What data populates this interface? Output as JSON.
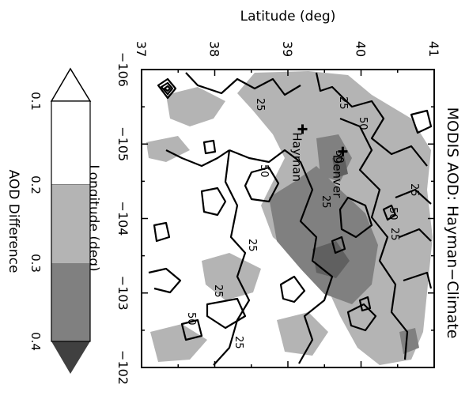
{
  "chart_data": {
    "type": "heatmap",
    "title": "MODIS AOD: Hayman−Climate",
    "xlabel": "Longitude (deg)",
    "ylabel": "Latitude (deg)",
    "xlim": [
      -106,
      -102
    ],
    "ylim": [
      37,
      41
    ],
    "x_ticks": [
      "−106",
      "−105",
      "−104",
      "−103",
      "−102"
    ],
    "y_ticks": [
      "37",
      "38",
      "39",
      "40",
      "41"
    ],
    "colorbar": {
      "label": "AOD Difference",
      "ticks": [
        "0.1",
        "0.2",
        "0.3",
        "0.4"
      ],
      "levels": [
        {
          "from": 0.1,
          "to": 0.2,
          "color": "#ffffff"
        },
        {
          "from": 0.2,
          "to": 0.3,
          "color": "#b4b4b4"
        },
        {
          "from": 0.3,
          "to": 0.4,
          "color": "#808080"
        },
        {
          "from": 0.4,
          "to": null,
          "color": "#404040"
        }
      ]
    },
    "contour_labels": [
      "25",
      "25",
      "50",
      "50",
      "50",
      "25",
      "25",
      "25",
      "50",
      "25",
      "25",
      "25",
      "50"
    ],
    "locations": [
      {
        "name": "Hayman",
        "lon": -105.2,
        "lat": 39.2
      },
      {
        "name": "Denver",
        "lon": -104.9,
        "lat": 39.75
      }
    ],
    "shaded_regions": [
      {
        "level": 0.2,
        "lon": [
          -105.9,
          -105.2
        ],
        "lat": [
          38.4,
          39.1
        ]
      },
      {
        "level": 0.2,
        "lon": [
          -105.3,
          -102.1
        ],
        "lat": [
          39.0,
          40.9
        ]
      },
      {
        "level": 0.2,
        "lon": [
          -103.7,
          -102.6
        ],
        "lat": [
          38.5,
          39.3
        ]
      },
      {
        "level": 0.3,
        "lon": [
          -104.3,
          -103.2
        ],
        "lat": [
          39.5,
          40.2
        ]
      },
      {
        "level": 0.3,
        "lon": [
          -105.0,
          -104.6
        ],
        "lat": [
          39.6,
          40.0
        ]
      },
      {
        "level": 0.4,
        "lon": [
          -103.8,
          -103.5
        ],
        "lat": [
          39.6,
          39.9
        ]
      }
    ]
  }
}
